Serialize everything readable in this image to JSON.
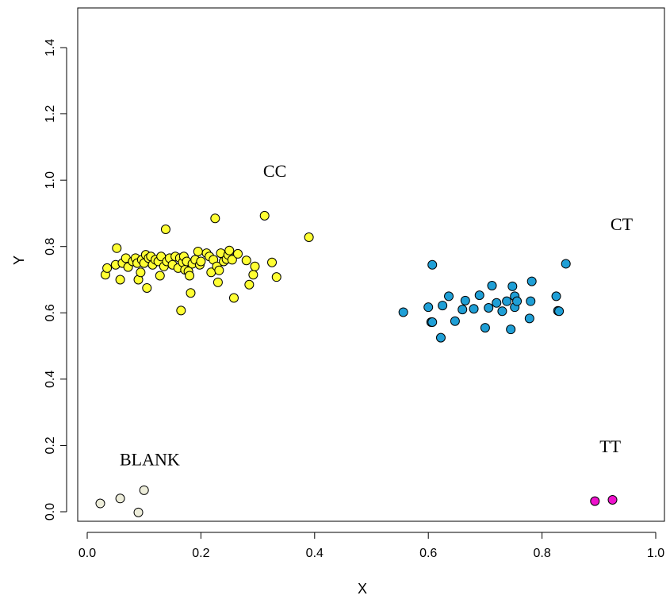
{
  "chart_data": {
    "type": "scatter",
    "title": "",
    "xlabel": "X",
    "ylabel": "Y",
    "xlim": [
      0.0,
      1.0
    ],
    "ylim": [
      0.0,
      1.4
    ],
    "x_ticks": [
      "0.0",
      "0.2",
      "0.4",
      "0.6",
      "0.8",
      "1.0"
    ],
    "y_ticks": [
      "0.0",
      "0.2",
      "0.4",
      "0.6",
      "0.8",
      "1.0",
      "1.2",
      "1.4"
    ],
    "grid": false,
    "legend": "none",
    "series": [
      {
        "name": "CC",
        "color": "#FFFF33",
        "points": [
          [
            0.032,
            0.715
          ],
          [
            0.035,
            0.735
          ],
          [
            0.05,
            0.745
          ],
          [
            0.052,
            0.795
          ],
          [
            0.058,
            0.7
          ],
          [
            0.062,
            0.75
          ],
          [
            0.068,
            0.765
          ],
          [
            0.072,
            0.738
          ],
          [
            0.08,
            0.755
          ],
          [
            0.085,
            0.765
          ],
          [
            0.088,
            0.75
          ],
          [
            0.09,
            0.7
          ],
          [
            0.094,
            0.722
          ],
          [
            0.096,
            0.76
          ],
          [
            0.1,
            0.75
          ],
          [
            0.103,
            0.775
          ],
          [
            0.105,
            0.675
          ],
          [
            0.108,
            0.765
          ],
          [
            0.112,
            0.77
          ],
          [
            0.115,
            0.745
          ],
          [
            0.12,
            0.76
          ],
          [
            0.125,
            0.755
          ],
          [
            0.128,
            0.712
          ],
          [
            0.13,
            0.77
          ],
          [
            0.135,
            0.74
          ],
          [
            0.138,
            0.852
          ],
          [
            0.14,
            0.755
          ],
          [
            0.145,
            0.765
          ],
          [
            0.15,
            0.745
          ],
          [
            0.155,
            0.77
          ],
          [
            0.16,
            0.735
          ],
          [
            0.163,
            0.765
          ],
          [
            0.165,
            0.607
          ],
          [
            0.168,
            0.752
          ],
          [
            0.17,
            0.77
          ],
          [
            0.172,
            0.73
          ],
          [
            0.175,
            0.755
          ],
          [
            0.178,
            0.725
          ],
          [
            0.18,
            0.712
          ],
          [
            0.182,
            0.66
          ],
          [
            0.185,
            0.748
          ],
          [
            0.19,
            0.76
          ],
          [
            0.195,
            0.785
          ],
          [
            0.198,
            0.745
          ],
          [
            0.2,
            0.755
          ],
          [
            0.21,
            0.78
          ],
          [
            0.215,
            0.77
          ],
          [
            0.218,
            0.722
          ],
          [
            0.222,
            0.76
          ],
          [
            0.225,
            0.885
          ],
          [
            0.228,
            0.74
          ],
          [
            0.23,
            0.692
          ],
          [
            0.232,
            0.728
          ],
          [
            0.235,
            0.78
          ],
          [
            0.24,
            0.755
          ],
          [
            0.245,
            0.762
          ],
          [
            0.248,
            0.775
          ],
          [
            0.25,
            0.788
          ],
          [
            0.255,
            0.76
          ],
          [
            0.258,
            0.645
          ],
          [
            0.265,
            0.778
          ],
          [
            0.28,
            0.758
          ],
          [
            0.285,
            0.685
          ],
          [
            0.292,
            0.715
          ],
          [
            0.295,
            0.74
          ],
          [
            0.312,
            0.893
          ],
          [
            0.325,
            0.752
          ],
          [
            0.333,
            0.708
          ],
          [
            0.39,
            0.828
          ]
        ]
      },
      {
        "name": "CT",
        "color": "#1F9FD6",
        "points": [
          [
            0.556,
            0.602
          ],
          [
            0.6,
            0.617
          ],
          [
            0.605,
            0.572
          ],
          [
            0.607,
            0.745
          ],
          [
            0.607,
            0.572
          ],
          [
            0.622,
            0.525
          ],
          [
            0.625,
            0.622
          ],
          [
            0.636,
            0.65
          ],
          [
            0.647,
            0.575
          ],
          [
            0.66,
            0.61
          ],
          [
            0.665,
            0.637
          ],
          [
            0.68,
            0.612
          ],
          [
            0.69,
            0.653
          ],
          [
            0.7,
            0.555
          ],
          [
            0.706,
            0.615
          ],
          [
            0.712,
            0.682
          ],
          [
            0.72,
            0.63
          ],
          [
            0.73,
            0.605
          ],
          [
            0.738,
            0.635
          ],
          [
            0.745,
            0.55
          ],
          [
            0.748,
            0.68
          ],
          [
            0.752,
            0.617
          ],
          [
            0.752,
            0.65
          ],
          [
            0.756,
            0.635
          ],
          [
            0.778,
            0.583
          ],
          [
            0.78,
            0.635
          ],
          [
            0.782,
            0.695
          ],
          [
            0.825,
            0.65
          ],
          [
            0.828,
            0.606
          ],
          [
            0.83,
            0.605
          ],
          [
            0.842,
            0.748
          ]
        ]
      },
      {
        "name": "TT",
        "color": "#EE11CC",
        "points": [
          [
            0.893,
            0.032
          ],
          [
            0.924,
            0.036
          ]
        ]
      },
      {
        "name": "BLANK",
        "color": "#EDEDDA",
        "points": [
          [
            0.023,
            0.025
          ],
          [
            0.058,
            0.04
          ],
          [
            0.09,
            -0.002
          ],
          [
            0.1,
            0.065
          ]
        ]
      }
    ],
    "annotations": [
      {
        "text": "CC",
        "x": 0.33,
        "y": 1.01
      },
      {
        "text": "CT",
        "x": 0.94,
        "y": 0.85
      },
      {
        "text": "TT",
        "x": 0.92,
        "y": 0.18
      },
      {
        "text": "BLANK",
        "x": 0.11,
        "y": 0.14
      }
    ]
  }
}
